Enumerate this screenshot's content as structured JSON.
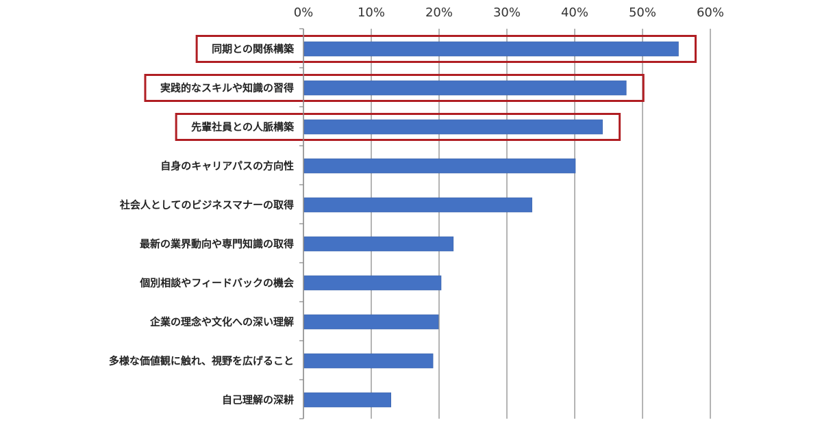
{
  "chart_data": {
    "type": "bar",
    "orientation": "horizontal",
    "title": "",
    "xlabel": "",
    "ylabel": "",
    "x_tick_labels": [
      "0%",
      "10%",
      "20%",
      "30%",
      "40%",
      "50%",
      "60%"
    ],
    "xlim": [
      0,
      60
    ],
    "x_axis_position": "top",
    "grid": true,
    "bar_color": "#4472C4",
    "highlight_color": "#B01E23",
    "categories": [
      "同期との関係構築",
      "実践的なスキルや知識の習得",
      "先輩社員との人脈構築",
      "自身のキャリアパスの方向性",
      "社会人としてのビジネスマナーの取得",
      "最新の業界動向や専門知識の取得",
      "個別相談やフィードバックの機会",
      "企業の理念や文化への深い理解",
      "多様な価値観に触れ、視野を広げること",
      "自己理解の深耕"
    ],
    "values": [
      55.2,
      47.5,
      44.0,
      40.0,
      33.6,
      22.0,
      20.2,
      19.8,
      19.0,
      12.8
    ],
    "highlighted": [
      true,
      true,
      true,
      false,
      false,
      false,
      false,
      false,
      false,
      false
    ]
  }
}
